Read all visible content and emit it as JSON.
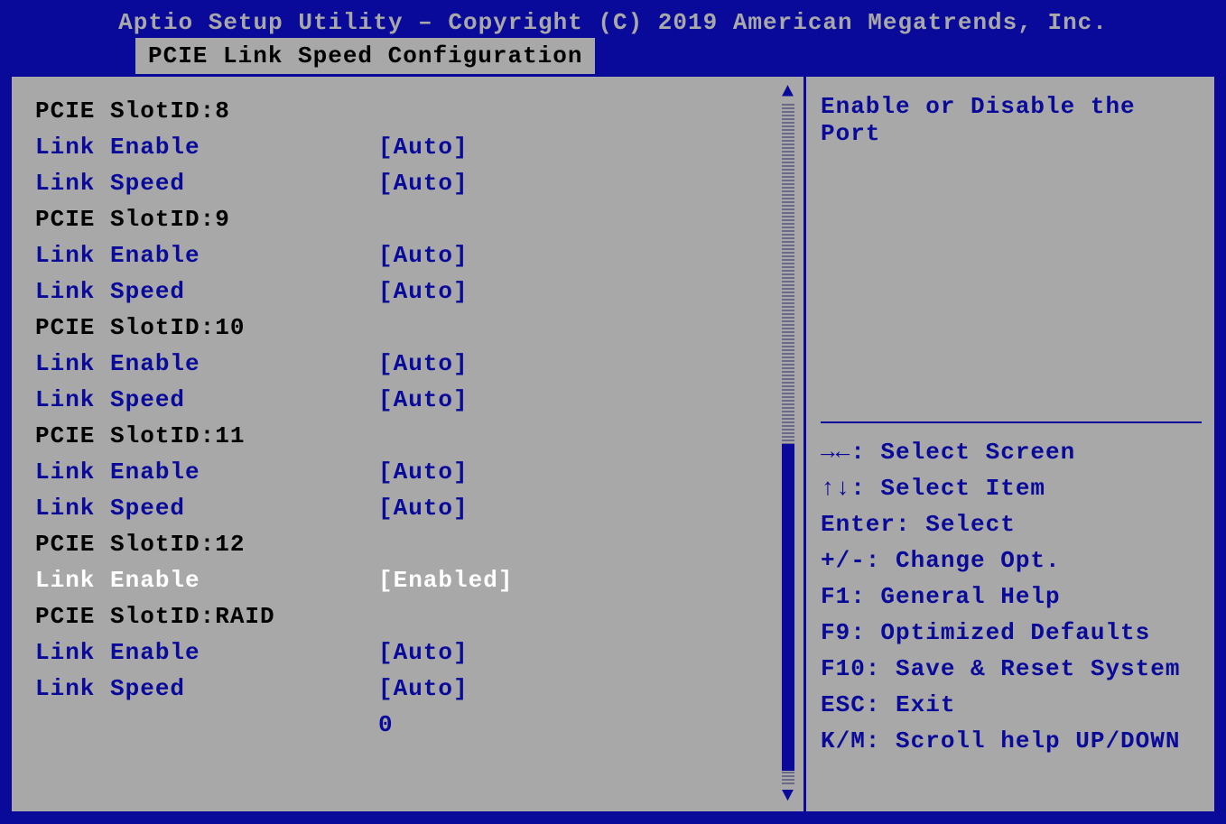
{
  "colors": {
    "header_bg": "#0a0a9a",
    "panel_bg": "#a8a8a8",
    "text_black": "#000000",
    "text_blue": "#0a0a9a",
    "text_white": "#ffffff",
    "text_gray": "#a8a8a8"
  },
  "header": {
    "title": "Aptio Setup Utility – Copyright (C) 2019 American Megatrends, Inc.",
    "tab": "PCIE Link Speed Configuration"
  },
  "settings": [
    {
      "label": "PCIE SlotID:8",
      "value": "",
      "kind": "header",
      "color": "black"
    },
    {
      "label": "Link Enable",
      "value": "[Auto]",
      "kind": "option",
      "color": "blue"
    },
    {
      "label": "Link Speed",
      "value": "[Auto]",
      "kind": "option",
      "color": "blue"
    },
    {
      "label": "PCIE SlotID:9",
      "value": "",
      "kind": "header",
      "color": "black"
    },
    {
      "label": "Link Enable",
      "value": "[Auto]",
      "kind": "option",
      "color": "blue"
    },
    {
      "label": "Link Speed",
      "value": "[Auto]",
      "kind": "option",
      "color": "blue"
    },
    {
      "label": "PCIE SlotID:10",
      "value": "",
      "kind": "header",
      "color": "black"
    },
    {
      "label": "Link Enable",
      "value": "[Auto]",
      "kind": "option",
      "color": "blue"
    },
    {
      "label": "Link Speed",
      "value": "[Auto]",
      "kind": "option",
      "color": "blue"
    },
    {
      "label": "PCIE SlotID:11",
      "value": "",
      "kind": "header",
      "color": "black"
    },
    {
      "label": "Link Enable",
      "value": "[Auto]",
      "kind": "option",
      "color": "blue"
    },
    {
      "label": "Link Speed",
      "value": "[Auto]",
      "kind": "option",
      "color": "blue"
    },
    {
      "label": "PCIE SlotID:12",
      "value": "",
      "kind": "header",
      "color": "black"
    },
    {
      "label": "Link Enable",
      "value": "[Enabled]",
      "kind": "selected",
      "color": "white"
    },
    {
      "label": "PCIE SlotID:RAID",
      "value": "",
      "kind": "header",
      "color": "black"
    },
    {
      "label": "Link Enable",
      "value": "[Auto]",
      "kind": "option",
      "color": "blue"
    },
    {
      "label": "Link Speed",
      "value": "[Auto]",
      "kind": "option",
      "color": "blue"
    },
    {
      "label": "",
      "value": "0",
      "kind": "option",
      "color": "blue"
    }
  ],
  "scroll": {
    "thumb_top_pct": 50,
    "thumb_height_pct": 48
  },
  "help": {
    "description": "Enable or Disable the Port",
    "keys": [
      "→←: Select Screen",
      "↑↓: Select Item",
      "Enter: Select",
      "+/-: Change Opt.",
      "F1: General Help",
      "F9: Optimized Defaults",
      "F10: Save & Reset System",
      "ESC: Exit",
      "K/M: Scroll help UP/DOWN"
    ]
  }
}
